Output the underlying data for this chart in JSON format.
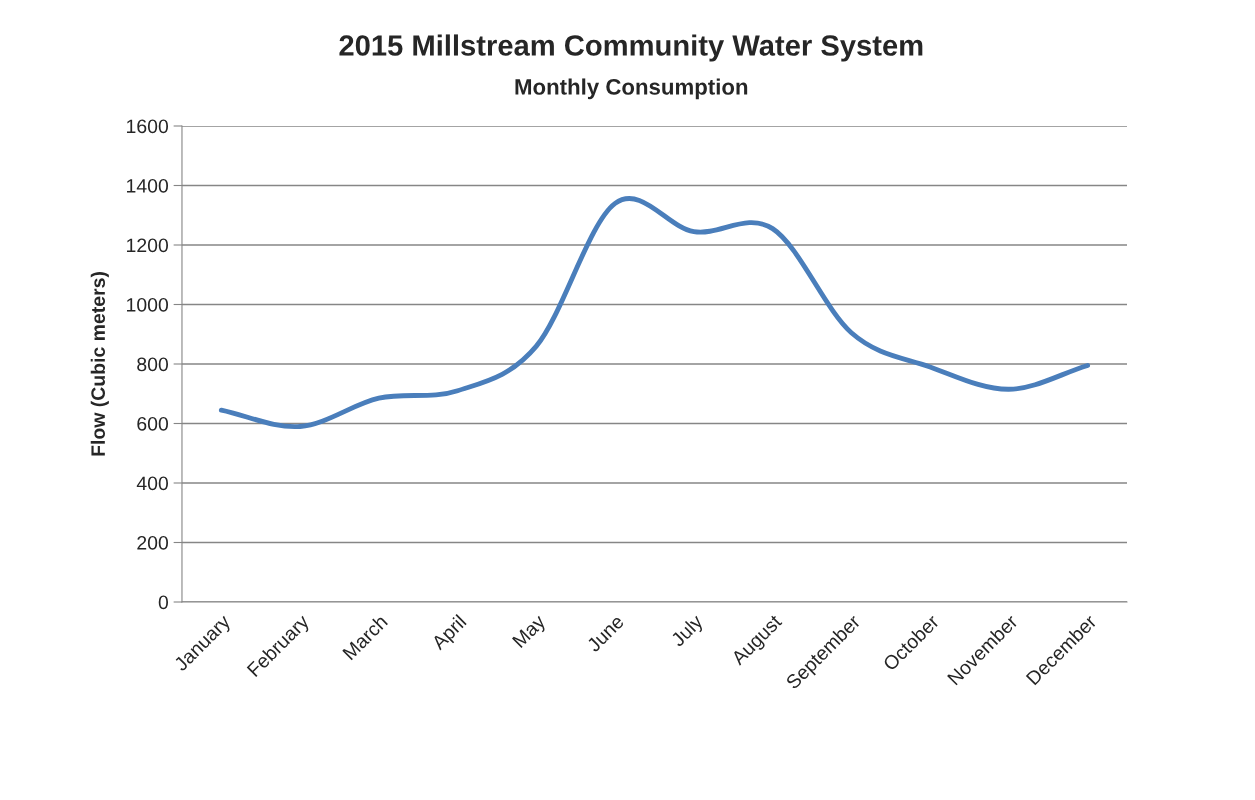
{
  "chart_data": {
    "type": "line",
    "title": "2015 Millstream Community Water System",
    "subtitle": "Monthly Consumption",
    "ylabel": "Flow (Cubic meters)",
    "categories": [
      "January",
      "February",
      "March",
      "April",
      "May",
      "June",
      "July",
      "August",
      "September",
      "October",
      "November",
      "December"
    ],
    "series": [
      {
        "color": "#4a7ebb",
        "values": [
          645,
          590,
          685,
          710,
          860,
          1340,
          1245,
          1255,
          905,
          790,
          715,
          795
        ]
      }
    ],
    "ylim": [
      0,
      1600
    ],
    "yticks": [
      0,
      200,
      400,
      600,
      800,
      1000,
      1200,
      1400,
      1600
    ],
    "grid": "y",
    "marker": "none",
    "line_style": "solid"
  }
}
